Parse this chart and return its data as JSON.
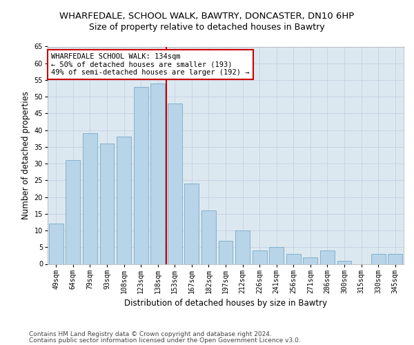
{
  "title1": "WHARFEDALE, SCHOOL WALK, BAWTRY, DONCASTER, DN10 6HP",
  "title2": "Size of property relative to detached houses in Bawtry",
  "xlabel": "Distribution of detached houses by size in Bawtry",
  "ylabel": "Number of detached properties",
  "categories": [
    "49sqm",
    "64sqm",
    "79sqm",
    "93sqm",
    "108sqm",
    "123sqm",
    "138sqm",
    "153sqm",
    "167sqm",
    "182sqm",
    "197sqm",
    "212sqm",
    "226sqm",
    "241sqm",
    "256sqm",
    "271sqm",
    "286sqm",
    "300sqm",
    "315sqm",
    "330sqm",
    "345sqm"
  ],
  "values": [
    12,
    31,
    39,
    36,
    38,
    53,
    54,
    48,
    24,
    16,
    7,
    10,
    4,
    5,
    3,
    2,
    4,
    1,
    0,
    3,
    3
  ],
  "bar_color": "#b8d4e8",
  "bar_edge_color": "#7aaac8",
  "bar_width": 0.85,
  "vline_pos": 6.5,
  "vline_color": "#cc0000",
  "annotation_text": "WHARFEDALE SCHOOL WALK: 134sqm\n← 50% of detached houses are smaller (193)\n49% of semi-detached houses are larger (192) →",
  "annotation_box_color": "#ffffff",
  "annotation_box_edge": "#cc0000",
  "ylim": [
    0,
    65
  ],
  "yticks": [
    0,
    5,
    10,
    15,
    20,
    25,
    30,
    35,
    40,
    45,
    50,
    55,
    60,
    65
  ],
  "grid_color": "#c8d4e4",
  "bg_color": "#dce8f0",
  "footer1": "Contains HM Land Registry data © Crown copyright and database right 2024.",
  "footer2": "Contains public sector information licensed under the Open Government Licence v3.0.",
  "title1_fontsize": 9.5,
  "title2_fontsize": 9,
  "axis_label_fontsize": 8.5,
  "tick_fontsize": 7,
  "footer_fontsize": 6.5,
  "annot_fontsize": 7.5
}
